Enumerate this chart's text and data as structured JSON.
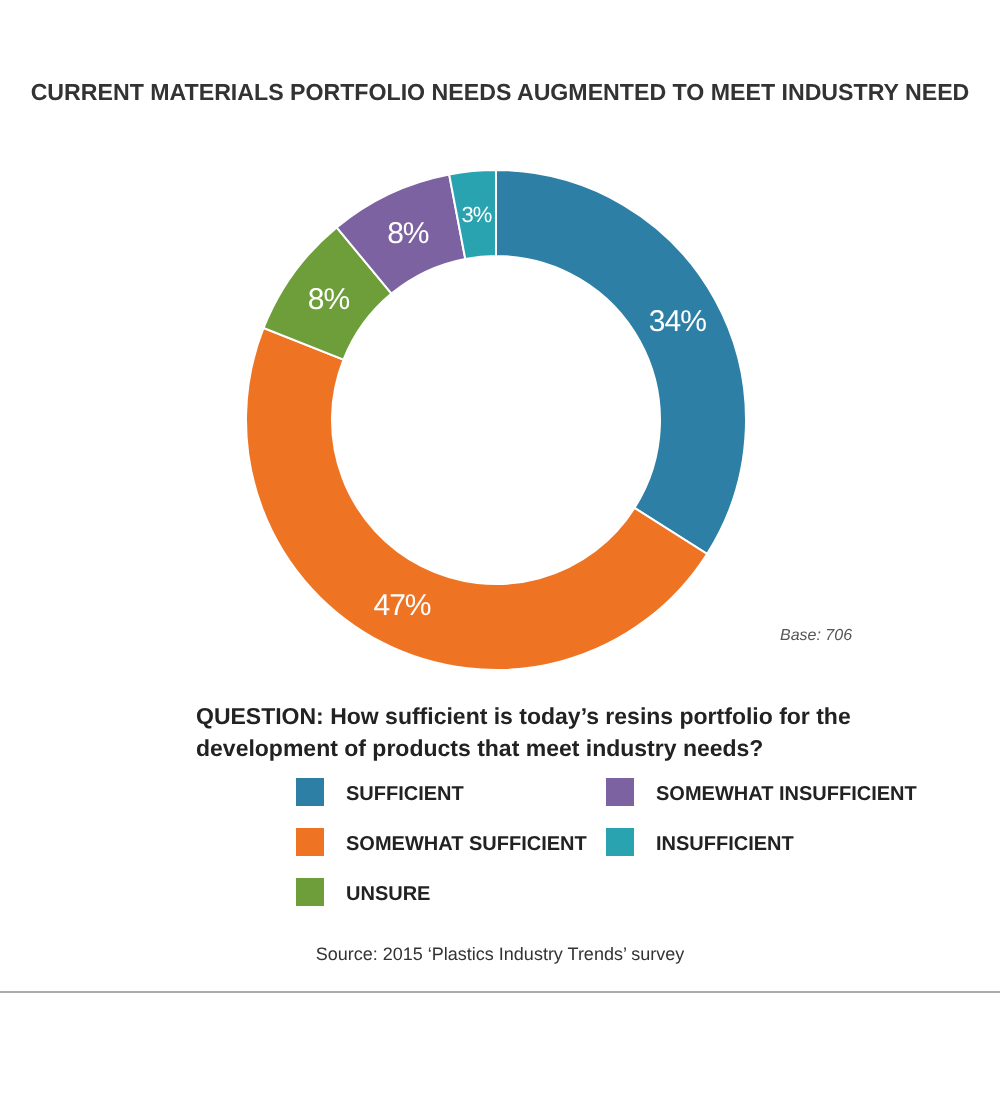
{
  "chart_data": {
    "type": "donut",
    "title": "CURRENT MATERIALS PORTFOLIO NEEDS AUGMENTED TO MEET INDUSTRY NEED",
    "categories": [
      "SUFFICIENT",
      "SOMEWHAT SUFFICIENT",
      "UNSURE",
      "SOMEWHAT INSUFFICIENT",
      "INSUFFICIENT"
    ],
    "values": [
      34,
      47,
      8,
      8,
      3
    ],
    "colors": [
      "#2e7fa6",
      "#ee7424",
      "#6e9e3a",
      "#7d62a1",
      "#2aa3b0"
    ],
    "value_labels": [
      "34%",
      "47%",
      "8%",
      "8%",
      "3%"
    ],
    "legend_title": "QUESTION:  How sufficient is today’s resins portfolio for the development of products that meet industry needs?",
    "legend": "bottom",
    "annotations": [
      "Base: 706",
      "Source: 2015 ‘Plastics Industry Trends’ survey"
    ]
  }
}
